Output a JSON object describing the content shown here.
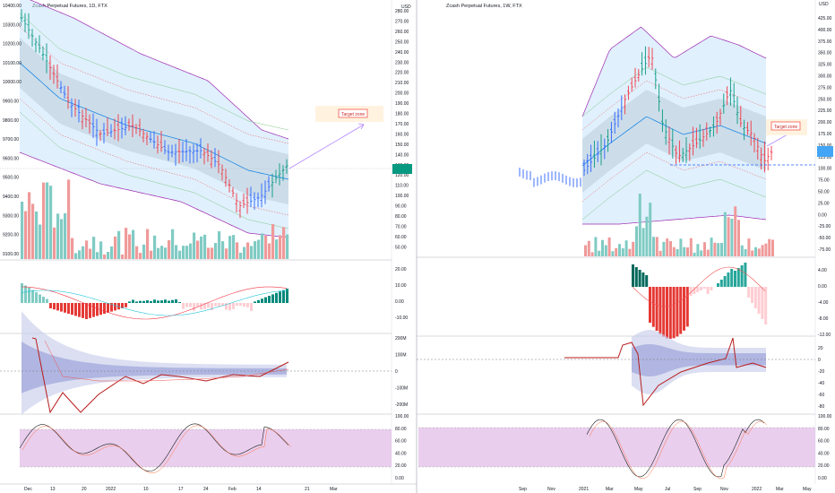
{
  "colors": {
    "up": "#089981",
    "down": "#f23645",
    "candle_blue": "#2962ff",
    "band_fill": "#bbdefb",
    "band_outer": "#9c27b0",
    "volume_up": "#26a69a",
    "volume_down": "#ef5350",
    "stoch_fill": "#e1bee7",
    "target_border": "#f44336",
    "target_fill": "#fff3e0",
    "price_label": "#26a69a",
    "price_label_blue": "#42a5f5"
  },
  "left_chart": {
    "title": "Zcash Perpetual Futures, 1D, FTX",
    "target_label": "Target zone",
    "y_labels_left": [
      "10400.00",
      "10300.00",
      "10200.00",
      "10100.00",
      "10000.00",
      "9900.00",
      "9800.00",
      "9700.00",
      "9600.00",
      "9500.00",
      "9400.00",
      "9300.00",
      "9200.00",
      "9100.00"
    ],
    "currency": "USD",
    "y_labels_right": [
      "280.00",
      "270.00",
      "260.00",
      "250.00",
      "240.00",
      "230.00",
      "220.00",
      "210.00",
      "200.00",
      "190.00",
      "180.00",
      "170.00",
      "160.00",
      "150.00",
      "140.00",
      "130.00",
      "120.00",
      "110.00",
      "100.00",
      "90.00",
      "80.00",
      "70.00",
      "60.00",
      "50.00"
    ],
    "osc1_labels": [
      "20.00",
      "10.00",
      "0.00",
      "-10.00"
    ],
    "osc2_labels": [
      "200M",
      "100M",
      "0",
      "-100M",
      "-200M"
    ],
    "stoch_labels": [
      "100.00",
      "80.00",
      "60.00",
      "40.00",
      "20.00",
      "0.00"
    ],
    "x_labels": [
      "Dec",
      "13",
      "20",
      "2022",
      "10",
      "17",
      "24",
      "Feb",
      "14",
      "21",
      "Mar"
    ]
  },
  "right_chart": {
    "title": "Zcash Perpetual Futures, 1W, FTX",
    "target_label": "Target zone",
    "currency": "USD",
    "y_labels_right": [
      "425.00",
      "400.00",
      "375.00",
      "350.00",
      "325.00",
      "300.00",
      "275.00",
      "250.00",
      "225.00",
      "200.00",
      "175.00",
      "150.00",
      "125.00",
      "100.00",
      "75.00",
      "50.00",
      "25.00",
      "0.00",
      "-25.00",
      "-50.00",
      "-75.00"
    ],
    "osc1_labels": [
      "4.00",
      "0.00",
      "-4.00",
      "-8.00",
      "-12.00"
    ],
    "osc2_labels": [
      "20",
      "0",
      "-20",
      "-40",
      "-60",
      "-80"
    ],
    "stoch_labels": [
      "100.00",
      "80.00",
      "60.00",
      "40.00",
      "20.00",
      "0.00"
    ],
    "x_labels": [
      "Sep",
      "Nov",
      "2021",
      "Mar",
      "May",
      "Jul",
      "Sep",
      "Nov",
      "2022",
      "Mar",
      "May"
    ]
  }
}
